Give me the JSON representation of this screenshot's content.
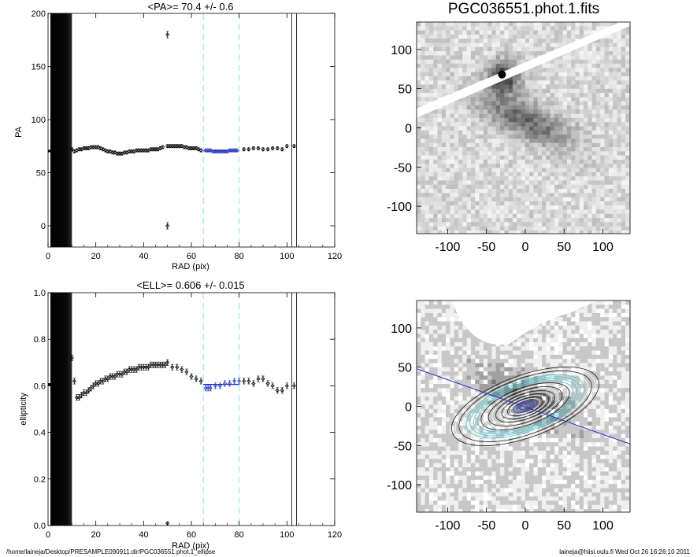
{
  "figure_title": "PGC036551.phot.1.fits",
  "footer": {
    "path": "/home/laineja/Desktop/PRESAMPLE090911.dir/PGC036551.phot.1_ellipse",
    "user_date": "laineja@hiisi.oulu.fi  Wed Oct 26 16:26:10 2011"
  },
  "colors": {
    "axis": "#000000",
    "mean_fit": "#1f2fbf",
    "range_marker": "#9ee6f0",
    "major_axis_line": "#2a35c8"
  },
  "chart_data": [
    {
      "id": "pa-profile",
      "type": "scatter",
      "title": "<PA>=  70.4 +/-   0.6",
      "xlabel": "RAD (pix)",
      "ylabel": "PA",
      "xlim": [
        0,
        120
      ],
      "ylim": [
        -20,
        200
      ],
      "xticks": [
        0,
        20,
        40,
        60,
        80,
        100,
        120
      ],
      "yticks": [
        0,
        50,
        100,
        150,
        200
      ],
      "shaded_region": [
        1,
        10
      ],
      "fit_range": [
        65,
        80
      ],
      "vertical_lines": [
        102,
        104
      ],
      "mean_value": 70.4,
      "series": [
        {
          "points": [
            [
              10,
              72
            ],
            [
              11,
              70
            ],
            [
              12,
              71
            ],
            [
              13,
              72
            ],
            [
              14,
              72
            ],
            [
              15,
              73
            ],
            [
              16,
              73
            ],
            [
              17,
              73
            ],
            [
              18,
              74
            ],
            [
              19,
              74
            ],
            [
              20,
              74
            ],
            [
              21,
              74
            ],
            [
              22,
              73
            ],
            [
              23,
              72
            ],
            [
              24,
              71
            ],
            [
              25,
              70
            ],
            [
              26,
              70
            ],
            [
              27,
              69
            ],
            [
              28,
              69
            ],
            [
              29,
              68
            ],
            [
              30,
              68
            ],
            [
              31,
              68
            ],
            [
              32,
              69
            ],
            [
              33,
              69
            ],
            [
              34,
              70
            ],
            [
              35,
              70
            ],
            [
              36,
              70
            ],
            [
              37,
              71
            ],
            [
              38,
              71
            ],
            [
              39,
              71
            ],
            [
              40,
              71
            ],
            [
              41,
              71
            ],
            [
              42,
              71
            ],
            [
              43,
              72
            ],
            [
              44,
              72
            ],
            [
              45,
              72
            ],
            [
              46,
              72
            ],
            [
              47,
              73
            ],
            [
              48,
              74
            ],
            [
              50,
              75
            ],
            [
              51,
              75
            ],
            [
              52,
              75
            ],
            [
              53,
              75
            ],
            [
              54,
              75
            ],
            [
              55,
              75
            ],
            [
              56,
              75
            ],
            [
              57,
              74
            ],
            [
              58,
              74
            ],
            [
              59,
              73
            ],
            [
              60,
              73
            ],
            [
              61,
              73
            ],
            [
              62,
              73
            ],
            [
              63,
              72
            ],
            [
              64,
              71
            ],
            [
              66,
              71
            ],
            [
              67,
              71
            ],
            [
              68,
              71
            ],
            [
              69,
              70
            ],
            [
              70,
              70
            ],
            [
              71,
              70
            ],
            [
              72,
              70
            ],
            [
              73,
              70
            ],
            [
              74,
              70
            ],
            [
              75,
              70
            ],
            [
              76,
              71
            ],
            [
              77,
              71
            ],
            [
              78,
              71
            ],
            [
              79,
              71
            ],
            [
              82,
              72
            ],
            [
              84,
              72
            ],
            [
              86,
              73
            ],
            [
              88,
              73
            ],
            [
              90,
              72
            ],
            [
              92,
              72
            ],
            [
              94,
              73
            ],
            [
              96,
              73
            ],
            [
              98,
              72
            ],
            [
              100,
              75
            ],
            [
              103,
              75
            ]
          ],
          "errors": 1.5
        },
        {
          "points": [
            [
              50,
              180
            ],
            [
              50,
              0
            ]
          ],
          "errors": 3
        }
      ]
    },
    {
      "id": "ellipticity-profile",
      "type": "scatter",
      "title": "<ELL>= 0.606 +/-  0.015",
      "xlabel": "RAD (pix)",
      "ylabel": "ellipticity",
      "xlim": [
        0,
        120
      ],
      "ylim": [
        0.0,
        1.0
      ],
      "xticks": [
        0,
        20,
        40,
        60,
        80,
        100,
        120
      ],
      "yticks": [
        "0.0",
        "0.2",
        "0.4",
        "0.6",
        "0.8",
        "1.0"
      ],
      "shaded_region": [
        1,
        10
      ],
      "fit_range": [
        65,
        80
      ],
      "vertical_lines": [
        102,
        104
      ],
      "mean_value": 0.606,
      "series": [
        {
          "points": [
            [
              10,
              0.72
            ],
            [
              11,
              0.62
            ],
            [
              12,
              0.55
            ],
            [
              13,
              0.55
            ],
            [
              14,
              0.56
            ],
            [
              15,
              0.57
            ],
            [
              16,
              0.57
            ],
            [
              17,
              0.58
            ],
            [
              18,
              0.59
            ],
            [
              19,
              0.6
            ],
            [
              20,
              0.61
            ],
            [
              21,
              0.61
            ],
            [
              22,
              0.62
            ],
            [
              23,
              0.62
            ],
            [
              24,
              0.63
            ],
            [
              25,
              0.63
            ],
            [
              26,
              0.64
            ],
            [
              27,
              0.64
            ],
            [
              28,
              0.64
            ],
            [
              29,
              0.65
            ],
            [
              30,
              0.65
            ],
            [
              31,
              0.65
            ],
            [
              32,
              0.66
            ],
            [
              33,
              0.66
            ],
            [
              34,
              0.67
            ],
            [
              35,
              0.67
            ],
            [
              36,
              0.67
            ],
            [
              37,
              0.67
            ],
            [
              38,
              0.68
            ],
            [
              39,
              0.68
            ],
            [
              40,
              0.68
            ],
            [
              41,
              0.68
            ],
            [
              42,
              0.68
            ],
            [
              43,
              0.69
            ],
            [
              44,
              0.69
            ],
            [
              45,
              0.69
            ],
            [
              46,
              0.69
            ],
            [
              47,
              0.69
            ],
            [
              48,
              0.69
            ],
            [
              49,
              0.69
            ],
            [
              50,
              0.7
            ],
            [
              52,
              0.68
            ],
            [
              54,
              0.68
            ],
            [
              56,
              0.67
            ],
            [
              58,
              0.66
            ],
            [
              60,
              0.64
            ],
            [
              62,
              0.63
            ],
            [
              64,
              0.62
            ],
            [
              66,
              0.59
            ],
            [
              67,
              0.59
            ],
            [
              68,
              0.59
            ],
            [
              70,
              0.6
            ],
            [
              72,
              0.6
            ],
            [
              74,
              0.61
            ],
            [
              76,
              0.61
            ],
            [
              78,
              0.62
            ],
            [
              80,
              0.62
            ],
            [
              82,
              0.62
            ],
            [
              84,
              0.62
            ],
            [
              86,
              0.61
            ],
            [
              88,
              0.63
            ],
            [
              90,
              0.63
            ],
            [
              92,
              0.61
            ],
            [
              94,
              0.6
            ],
            [
              96,
              0.58
            ],
            [
              98,
              0.58
            ],
            [
              100,
              0.6
            ],
            [
              103,
              0.6
            ]
          ],
          "errors": 0.012
        },
        {
          "points": [
            [
              50,
              0.01
            ]
          ],
          "errors": 0.005
        }
      ]
    },
    {
      "id": "galaxy-image",
      "type": "heatmap",
      "xticks": [
        -100,
        -50,
        0,
        50,
        100
      ],
      "yticks": [
        100,
        50,
        0,
        -50,
        -100
      ],
      "xlim": [
        -140,
        135
      ],
      "ylim": [
        -135,
        135
      ]
    },
    {
      "id": "masked-contour-image",
      "type": "heatmap",
      "xticks": [
        -100,
        -50,
        0,
        50,
        100
      ],
      "yticks": [
        100,
        50,
        0,
        -50,
        -100
      ],
      "xlim": [
        -140,
        135
      ],
      "ylim": [
        -135,
        135
      ]
    }
  ]
}
